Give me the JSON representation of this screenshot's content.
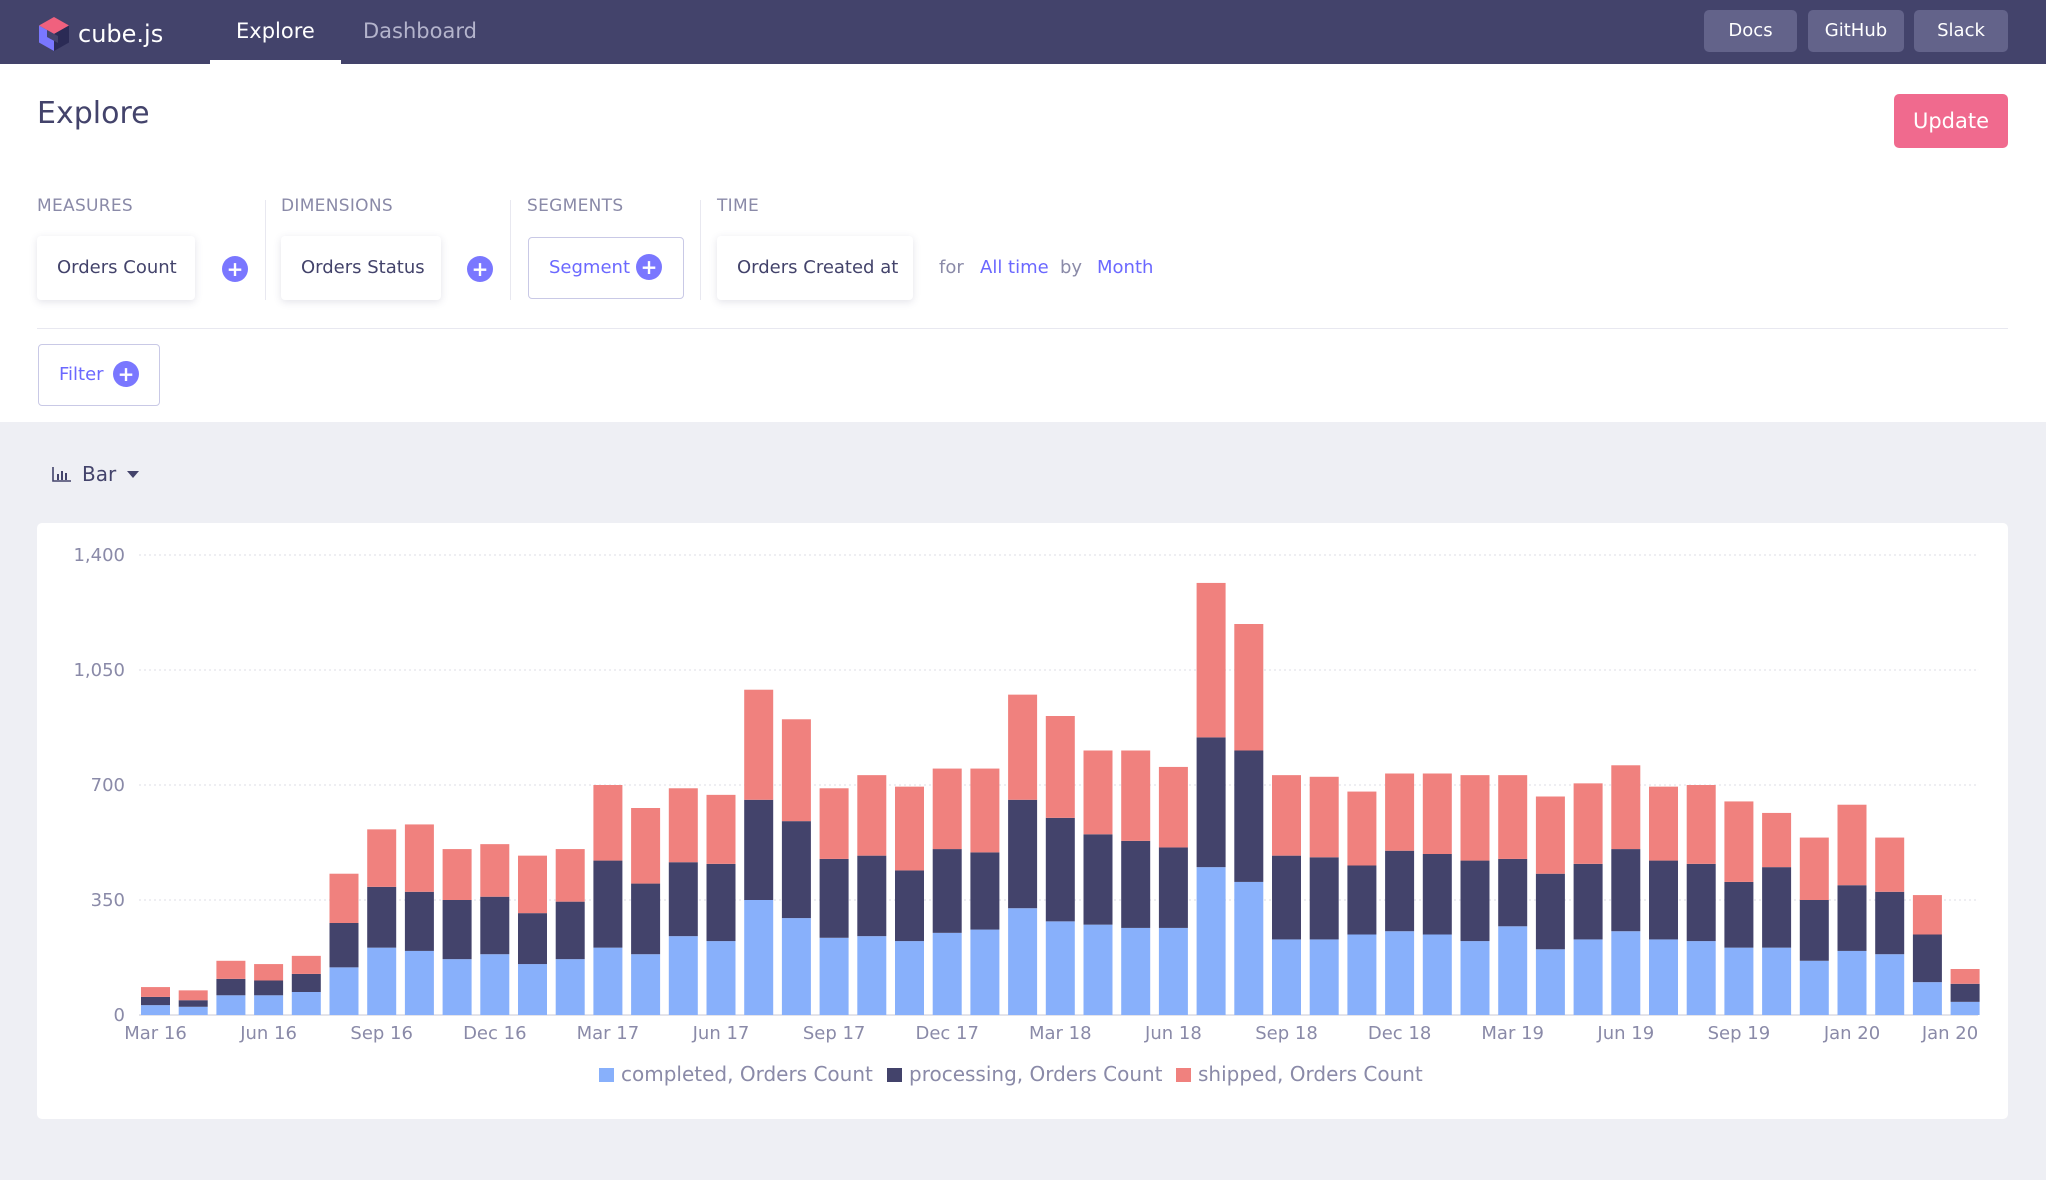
{
  "topbar": {
    "brand": "cube.js",
    "tabs": [
      {
        "label": "Explore"
      },
      {
        "label": "Dashboard"
      }
    ],
    "buttons": [
      {
        "label": "Docs"
      },
      {
        "label": "GitHub"
      },
      {
        "label": "Slack"
      }
    ]
  },
  "page": {
    "title": "Explore",
    "update_label": "Update"
  },
  "query": {
    "measures": {
      "label": "MEASURES",
      "item": "Orders Count"
    },
    "dimensions": {
      "label": "DIMENSIONS",
      "item": "Orders Status"
    },
    "segments": {
      "label": "SEGMENTS",
      "button": "Segment"
    },
    "time": {
      "label": "TIME",
      "item": "Orders Created at",
      "for": "for",
      "range": "All time",
      "by": "by",
      "granularity": "Month"
    },
    "filter_label": "Filter"
  },
  "chart_type": {
    "label": "Bar",
    "icon": "bar-chart-icon"
  },
  "colors": {
    "completed": "#88b0fb",
    "processing": "#43436b",
    "shipped": "#f0817e",
    "accent": "#6b68ff",
    "update": "#f06a8e"
  },
  "chart_data": {
    "type": "bar",
    "stacked": true,
    "ylim": [
      0,
      1400
    ],
    "yticks": [
      0,
      350,
      700,
      1050,
      1400
    ],
    "ytick_labels": [
      "0",
      "350",
      "700",
      "1,050",
      "1,400"
    ],
    "x_tick_labels": [
      "Mar 16",
      "Jun 16",
      "Sep 16",
      "Dec 16",
      "Mar 17",
      "Jun 17",
      "Sep 17",
      "Dec 17",
      "Mar 18",
      "Jun 18",
      "Sep 18",
      "Dec 18",
      "Mar 19",
      "Jun 19",
      "Sep 19",
      "Jan 20",
      "Jan 20"
    ],
    "x_tick_positions": [
      0,
      3,
      6,
      9,
      12,
      15,
      18,
      21,
      24,
      27,
      30,
      33,
      36,
      39,
      42,
      45,
      47.6
    ],
    "grid": true,
    "legend_position": "bottom",
    "series": [
      {
        "name": "completed, Orders Count",
        "color": "#88b0fb",
        "values": [
          30,
          25,
          60,
          60,
          70,
          145,
          205,
          195,
          170,
          185,
          155,
          170,
          205,
          185,
          240,
          225,
          350,
          295,
          235,
          240,
          225,
          250,
          260,
          325,
          285,
          275,
          265,
          265,
          450,
          405,
          230,
          230,
          245,
          255,
          245,
          225,
          270,
          200,
          230,
          255,
          230,
          225,
          205,
          205,
          165,
          195,
          185,
          100,
          40
        ]
      },
      {
        "name": "processing, Orders Count",
        "color": "#43436b",
        "values": [
          25,
          20,
          50,
          45,
          55,
          135,
          185,
          180,
          180,
          175,
          155,
          175,
          265,
          215,
          225,
          235,
          305,
          295,
          240,
          245,
          215,
          255,
          235,
          330,
          315,
          275,
          265,
          245,
          395,
          400,
          255,
          250,
          210,
          245,
          245,
          245,
          205,
          230,
          230,
          250,
          240,
          235,
          200,
          245,
          185,
          200,
          190,
          145,
          55
        ]
      },
      {
        "name": "shipped, Orders Count",
        "color": "#f0817e",
        "values": [
          30,
          30,
          55,
          50,
          55,
          150,
          175,
          205,
          155,
          160,
          175,
          160,
          230,
          230,
          225,
          210,
          335,
          310,
          215,
          245,
          255,
          245,
          255,
          320,
          310,
          255,
          275,
          245,
          470,
          385,
          245,
          245,
          225,
          235,
          245,
          260,
          255,
          235,
          245,
          255,
          225,
          240,
          245,
          165,
          190,
          245,
          165,
          120,
          45
        ]
      }
    ]
  }
}
